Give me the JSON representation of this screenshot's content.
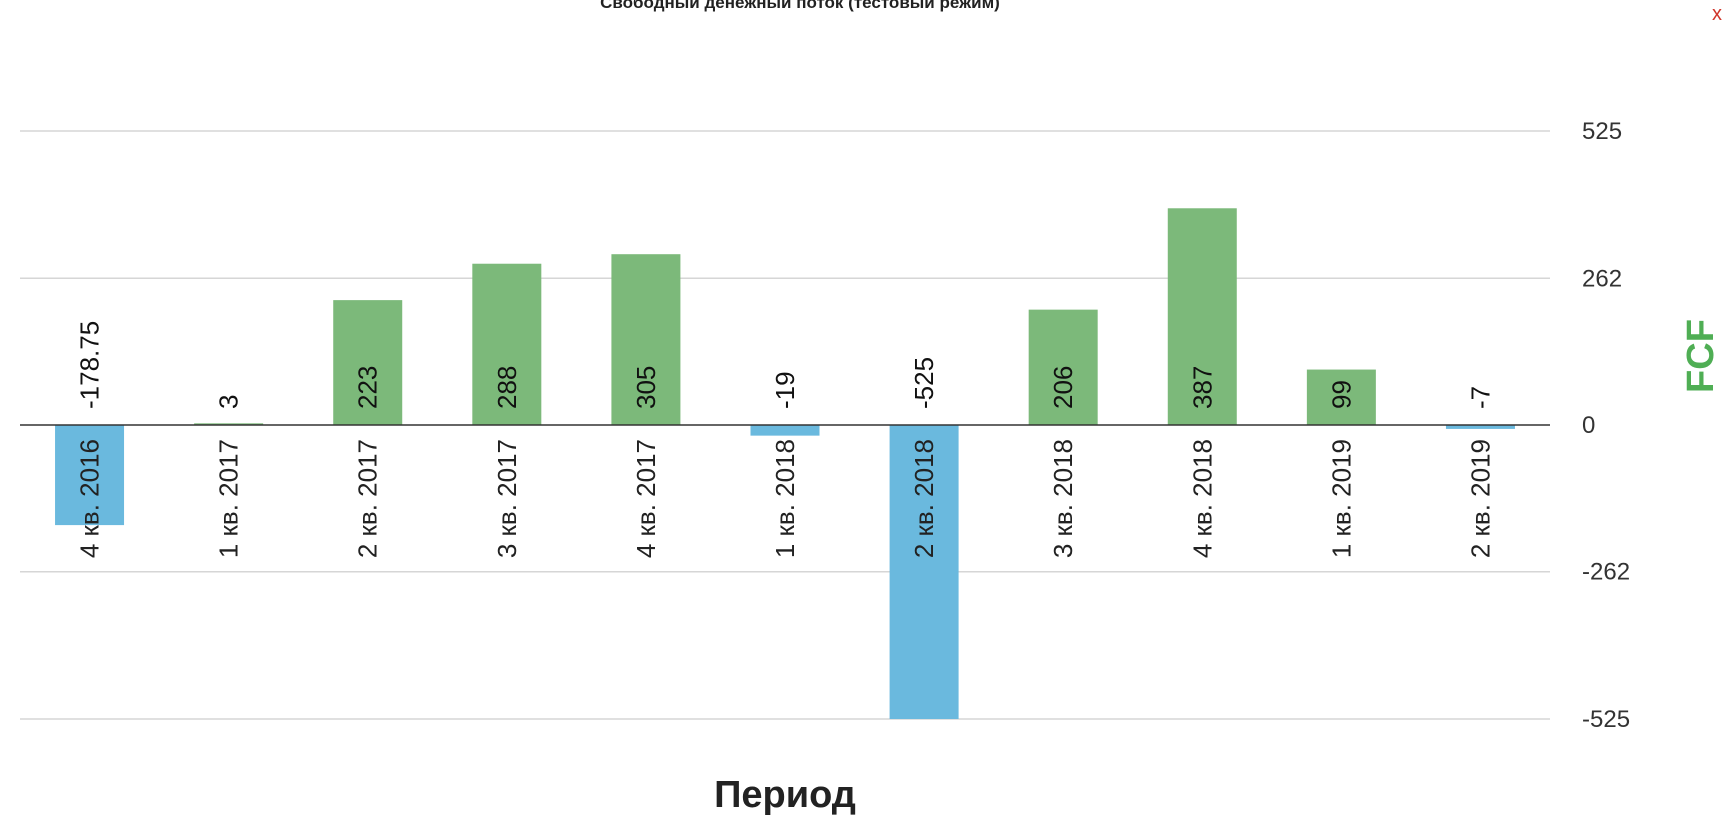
{
  "title": "Свободный денежный поток (тестовый режим)",
  "close_glyph": "x",
  "colors": {
    "positive": "#7cb97a",
    "negative": "#6ab9de",
    "grid": "#d6d6d6",
    "zero_line": "#333333",
    "y_label": "#4fae54"
  },
  "chart_data": {
    "type": "bar",
    "title": "Свободный денежный поток (тестовый режим)",
    "xlabel": "Период",
    "ylabel": "FCF",
    "ylim": [
      -525,
      525
    ],
    "yticks": [
      525,
      262,
      0,
      -262,
      -525
    ],
    "ytick_labels": [
      "525",
      "262",
      "0",
      "-262",
      "-525"
    ],
    "grid": true,
    "categories": [
      "4 кв. 2016",
      "1 кв. 2017",
      "2 кв. 2017",
      "3 кв. 2017",
      "4 кв. 2017",
      "1 кв. 2018",
      "2 кв. 2018",
      "3 кв. 2018",
      "4 кв. 2018",
      "1 кв. 2019",
      "2 кв. 2019"
    ],
    "values": [
      -178.75,
      3,
      223,
      288,
      305,
      -19,
      -525,
      206,
      387,
      99,
      -7
    ],
    "value_labels": [
      "-178.75",
      "3",
      "223",
      "288",
      "305",
      "-19",
      "-525",
      "206",
      "387",
      "99",
      "-7"
    ]
  }
}
